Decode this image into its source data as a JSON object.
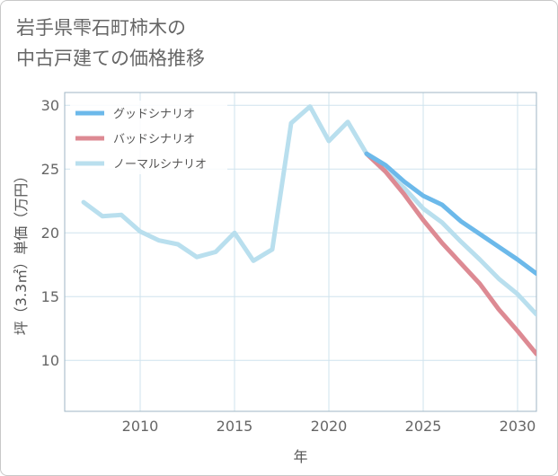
{
  "title_lines": [
    "岩手県雫石町柿木の",
    "中古戸建ての価格推移"
  ],
  "chart_data": {
    "type": "line",
    "title": "岩手県雫石町柿木の中古戸建ての価格推移",
    "xlabel": "年",
    "ylabel": "坪（3.3㎡）単価（万円）",
    "xlim": [
      2006,
      2031
    ],
    "ylim": [
      6,
      31
    ],
    "x_ticks": [
      2010,
      2015,
      2020,
      2025,
      2030
    ],
    "y_ticks": [
      10,
      15,
      20,
      25,
      30
    ],
    "grid": true,
    "legend_position": "top-left",
    "series": [
      {
        "name": "グッドシナリオ",
        "color": "#6cb9ea",
        "x": [
          2022,
          2023,
          2024,
          2025,
          2026,
          2027,
          2028,
          2029,
          2030,
          2031
        ],
        "values": [
          26.2,
          25.3,
          24.0,
          22.9,
          22.2,
          20.9,
          19.9,
          18.9,
          17.9,
          16.8
        ]
      },
      {
        "name": "バッドシナリオ",
        "color": "#dd8a93",
        "x": [
          2022,
          2023,
          2024,
          2025,
          2026,
          2027,
          2028,
          2029,
          2030,
          2031
        ],
        "values": [
          26.2,
          24.8,
          23.0,
          21.0,
          19.2,
          17.6,
          16.0,
          14.0,
          12.3,
          10.5
        ]
      },
      {
        "name": "ノーマルシナリオ",
        "color": "#b9dfee",
        "x": [
          2007,
          2008,
          2009,
          2010,
          2011,
          2012,
          2013,
          2014,
          2015,
          2016,
          2017,
          2018,
          2019,
          2020,
          2021,
          2022,
          2023,
          2024,
          2025,
          2026,
          2027,
          2028,
          2029,
          2030,
          2031
        ],
        "values": [
          22.4,
          21.3,
          21.4,
          20.1,
          19.4,
          19.1,
          18.1,
          18.5,
          20.0,
          17.8,
          18.7,
          28.6,
          29.9,
          27.2,
          28.7,
          26.2,
          24.8,
          23.5,
          21.9,
          20.8,
          19.3,
          17.9,
          16.4,
          15.2,
          13.6
        ]
      }
    ]
  }
}
